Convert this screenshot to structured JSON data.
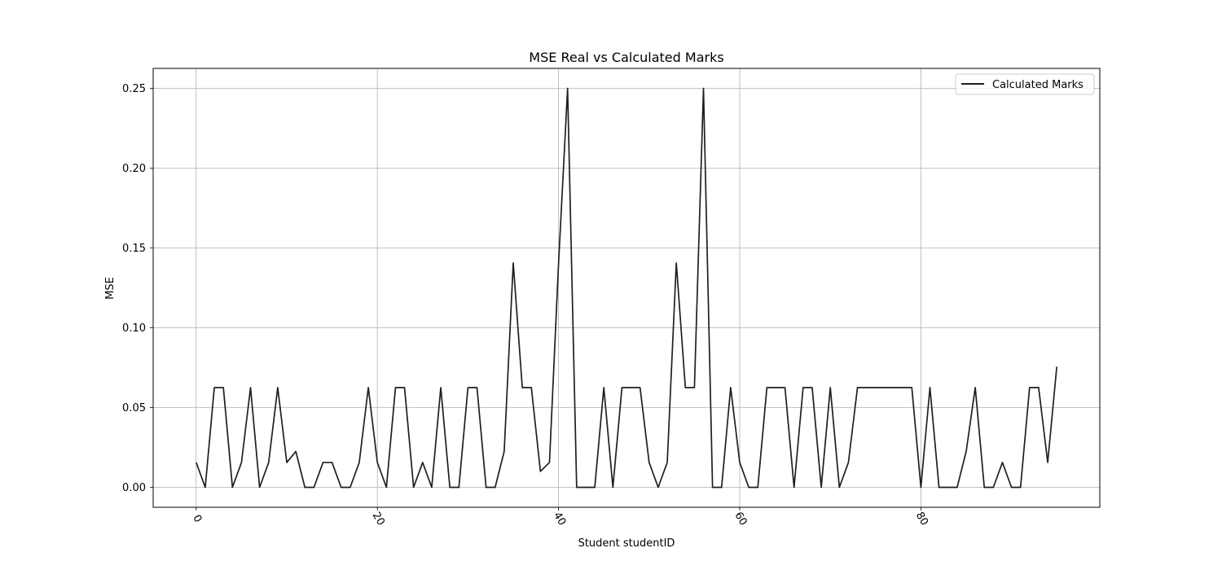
{
  "chart_data": {
    "type": "line",
    "title": "MSE Real vs Calculated Marks",
    "xlabel": "Student studentID",
    "ylabel": "MSE",
    "xlim": [
      -4.75,
      99.75
    ],
    "ylim": [
      -0.0125,
      0.2625
    ],
    "grid": true,
    "legend_position": "top-right",
    "xticks": [
      0,
      20,
      40,
      60,
      80
    ],
    "xtick_labels": [
      "0",
      "20",
      "40",
      "60",
      "80"
    ],
    "xtick_rotation": 60,
    "yticks": [
      0.0,
      0.05,
      0.1,
      0.15,
      0.2,
      0.25
    ],
    "ytick_labels": [
      "0.00",
      "0.05",
      "0.10",
      "0.15",
      "0.20",
      "0.25"
    ],
    "series": [
      {
        "name": "Calculated Marks",
        "color": "#1f1f1f",
        "x": [
          0,
          1,
          2,
          3,
          4,
          5,
          6,
          7,
          8,
          9,
          10,
          11,
          12,
          13,
          14,
          15,
          16,
          17,
          18,
          19,
          20,
          21,
          22,
          23,
          24,
          25,
          26,
          27,
          28,
          29,
          30,
          31,
          32,
          33,
          34,
          35,
          36,
          37,
          38,
          39,
          40,
          41,
          42,
          43,
          44,
          45,
          46,
          47,
          48,
          49,
          50,
          51,
          52,
          53,
          54,
          55,
          56,
          57,
          58,
          59,
          60,
          61,
          62,
          63,
          64,
          65,
          66,
          67,
          68,
          69,
          70,
          71,
          72,
          73,
          74,
          75,
          76,
          77,
          78,
          79,
          80,
          81,
          82,
          83,
          84,
          85,
          86,
          87,
          88,
          89,
          90,
          91,
          92,
          93,
          94,
          95
        ],
        "values": [
          0.0156,
          0,
          0.0625,
          0.0625,
          0,
          0.0156,
          0.0625,
          0,
          0.0156,
          0.0625,
          0.0156,
          0.0225,
          0,
          0,
          0.0156,
          0.0156,
          0,
          0,
          0.0156,
          0.0625,
          0.0156,
          0,
          0.0625,
          0.0625,
          0,
          0.0156,
          0,
          0.0625,
          0,
          0,
          0.0625,
          0.0625,
          0,
          0,
          0.0225,
          0.1406,
          0.0625,
          0.0625,
          0.01,
          0.0156,
          0.14,
          0.25,
          0,
          0,
          0,
          0.0625,
          0,
          0.0625,
          0.0625,
          0.0625,
          0.0156,
          0,
          0.0156,
          0.1406,
          0.0625,
          0.0625,
          0.25,
          0,
          0,
          0.0625,
          0.0156,
          0,
          0,
          0.0625,
          0.0625,
          0.0625,
          0,
          0.0625,
          0.0625,
          0,
          0.0625,
          0,
          0.0156,
          0.0625,
          0.0625,
          0.0625,
          0.0625,
          0.0625,
          0.0625,
          0.0625,
          0,
          0.0625,
          0,
          0,
          0,
          0.0225,
          0.0625,
          0,
          0,
          0.0156,
          0,
          0,
          0.0625,
          0.0625,
          0.0156,
          0.0756
        ]
      }
    ]
  }
}
